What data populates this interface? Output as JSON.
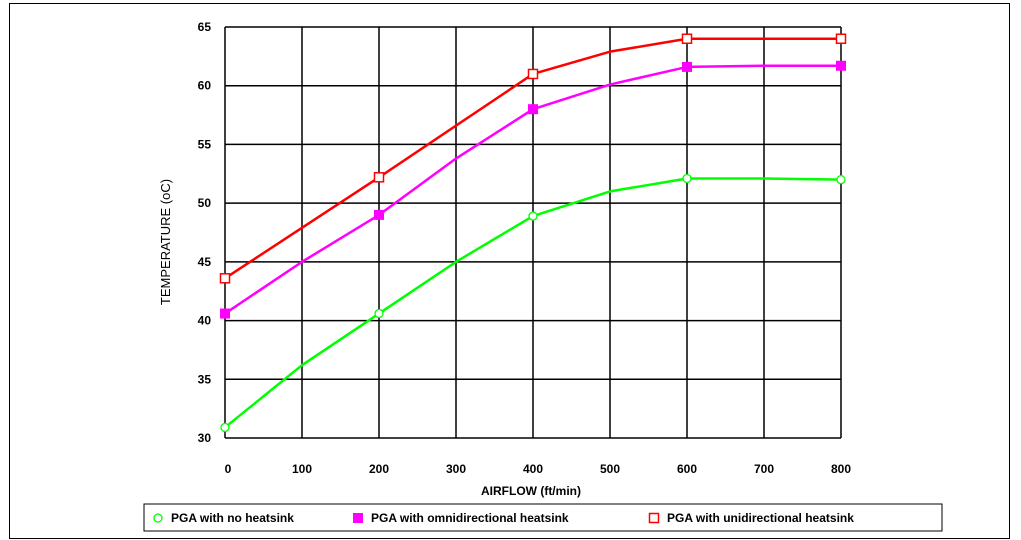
{
  "chart_data": {
    "type": "line",
    "title": "",
    "xlabel": "AIRFLOW (ft/min)",
    "ylabel": "TEMPERATURE (oC)",
    "xlim": [
      0,
      800
    ],
    "ylim": [
      30,
      65
    ],
    "x_ticks": [
      "0",
      "100",
      "200",
      "300",
      "400",
      "500",
      "600",
      "700",
      "800"
    ],
    "y_ticks": [
      "30",
      "35",
      "40",
      "45",
      "50",
      "55",
      "60",
      "65"
    ],
    "grid": true,
    "legend_position": "bottom",
    "series": [
      {
        "name": "PGA with no heatsink",
        "color": "#00ff00",
        "marker": "open-circle",
        "x": [
          0,
          200,
          400,
          600,
          800
        ],
        "y": [
          30.9,
          40.6,
          48.9,
          52.1,
          52.0
        ],
        "curve_x": [
          0,
          100,
          200,
          300,
          400,
          500,
          600,
          700,
          800
        ],
        "curve_y": [
          30.9,
          36.2,
          40.6,
          45.0,
          48.9,
          51.0,
          52.1,
          52.1,
          52.0
        ]
      },
      {
        "name": "PGA with omnidirectional heatsink",
        "color": "#ff00ff",
        "marker": "filled-square",
        "x": [
          0,
          200,
          400,
          600,
          800
        ],
        "y": [
          40.6,
          49.0,
          58.0,
          61.6,
          61.7
        ],
        "curve_x": [
          0,
          100,
          200,
          300,
          400,
          500,
          600,
          700,
          800
        ],
        "curve_y": [
          40.6,
          45.0,
          49.0,
          53.8,
          58.0,
          60.1,
          61.6,
          61.7,
          61.7
        ]
      },
      {
        "name": "PGA with unidirectional heatsink",
        "color": "#ff0000",
        "marker": "open-square",
        "x": [
          0,
          200,
          400,
          600,
          800
        ],
        "y": [
          43.6,
          52.2,
          61.0,
          64.0,
          64.0
        ],
        "curve_x": [
          0,
          100,
          200,
          300,
          400,
          500,
          600,
          700,
          800
        ],
        "curve_y": [
          43.6,
          47.9,
          52.2,
          56.6,
          61.0,
          62.9,
          64.0,
          64.0,
          64.0
        ]
      }
    ]
  }
}
